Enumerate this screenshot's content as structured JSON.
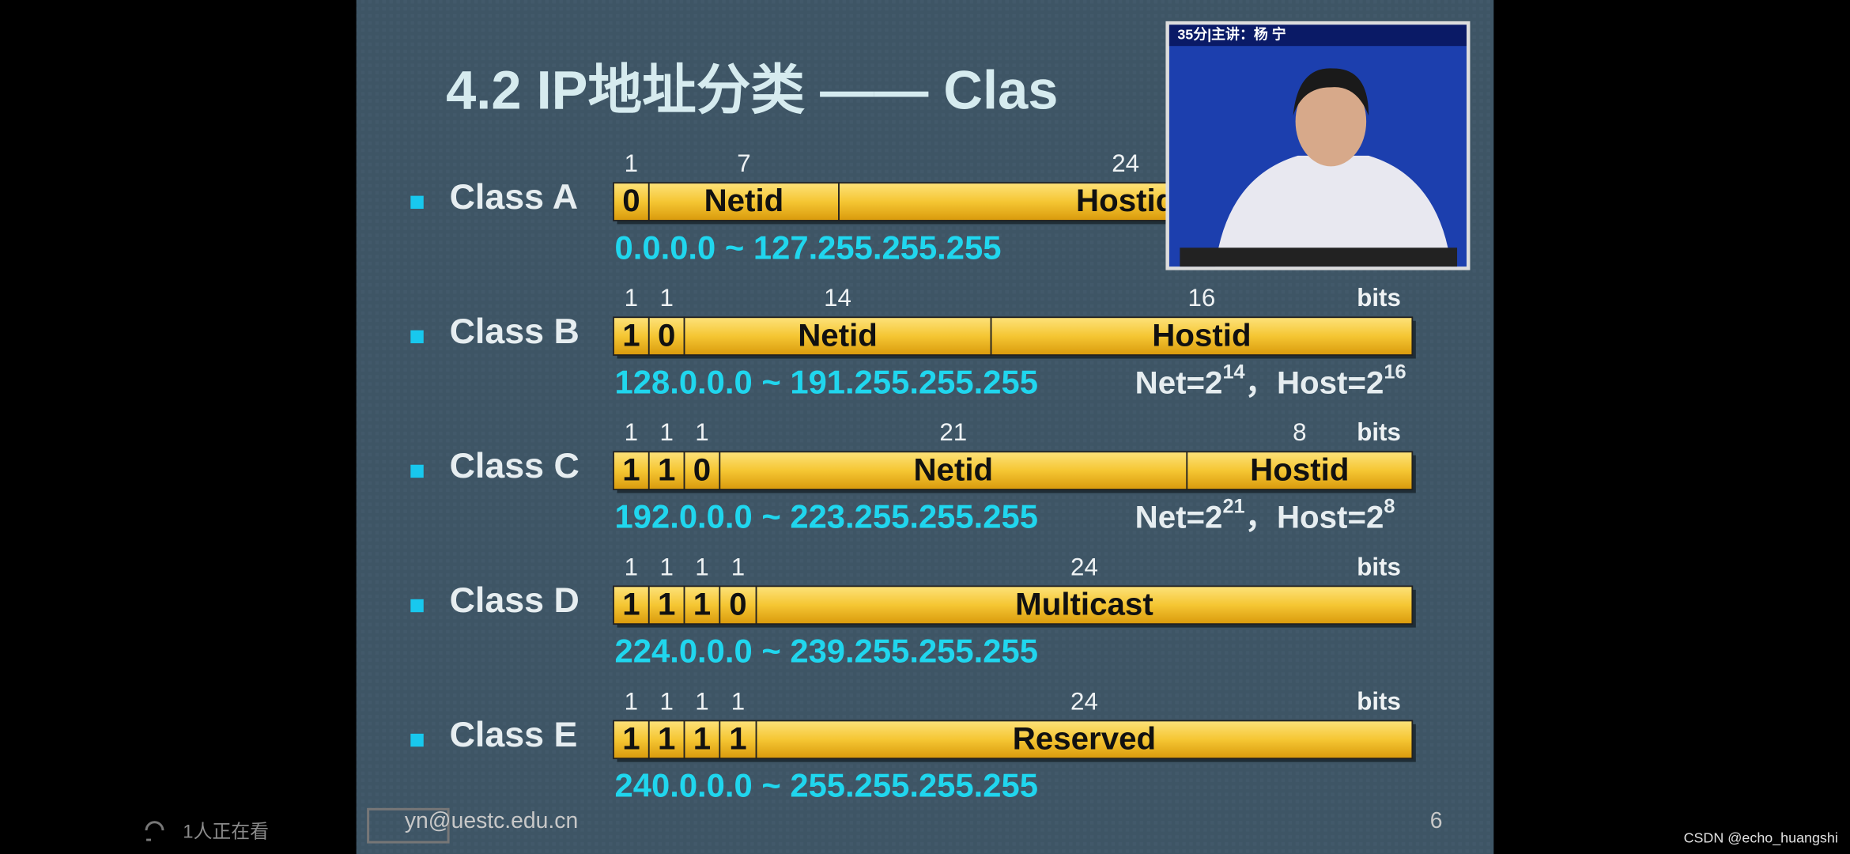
{
  "slide": {
    "title": "4.2 IP地址分类 —— Clas",
    "classes": [
      {
        "label": "Class A",
        "bit_counts": [
          1,
          7,
          24
        ],
        "fields": [
          "0",
          "Netid",
          "Hostid"
        ],
        "range": "0.0.0.0 ~ 127.255.255.255"
      },
      {
        "label": "Class B",
        "bit_counts": [
          1,
          1,
          14,
          16
        ],
        "bits_unit": "bits",
        "fields": [
          "1",
          "0",
          "Netid",
          "Hostid"
        ],
        "range": "128.0.0.0 ~ 191.255.255.255",
        "note_parts": [
          "Net=2",
          "14",
          "，Host=2",
          "16"
        ]
      },
      {
        "label": "Class C",
        "bit_counts": [
          1,
          1,
          1,
          21,
          8
        ],
        "bits_unit": "bits",
        "fields": [
          "1",
          "1",
          "0",
          "Netid",
          "Hostid"
        ],
        "range": "192.0.0.0 ~ 223.255.255.255",
        "note_parts": [
          "Net=2",
          "21",
          "，Host=2",
          "8"
        ]
      },
      {
        "label": "Class D",
        "bit_counts": [
          1,
          1,
          1,
          1,
          24
        ],
        "bits_unit": "bits",
        "fields": [
          "1",
          "1",
          "1",
          "0",
          "Multicast"
        ],
        "range": "224.0.0.0 ~ 239.255.255.255"
      },
      {
        "label": "Class E",
        "bit_counts": [
          1,
          1,
          1,
          1,
          24
        ],
        "bits_unit": "bits",
        "fields": [
          "1",
          "1",
          "1",
          "1",
          "Reserved"
        ],
        "range": "240.0.0.0 ~ 255.255.255.255"
      }
    ],
    "footer_email": "yn@uestc.edu.cn",
    "page_number": "6"
  },
  "video": {
    "caption": "35分|主讲：杨 宁"
  },
  "player": {
    "viewers": "1人正在看",
    "watermark": "CSDN @echo_huangshi"
  }
}
